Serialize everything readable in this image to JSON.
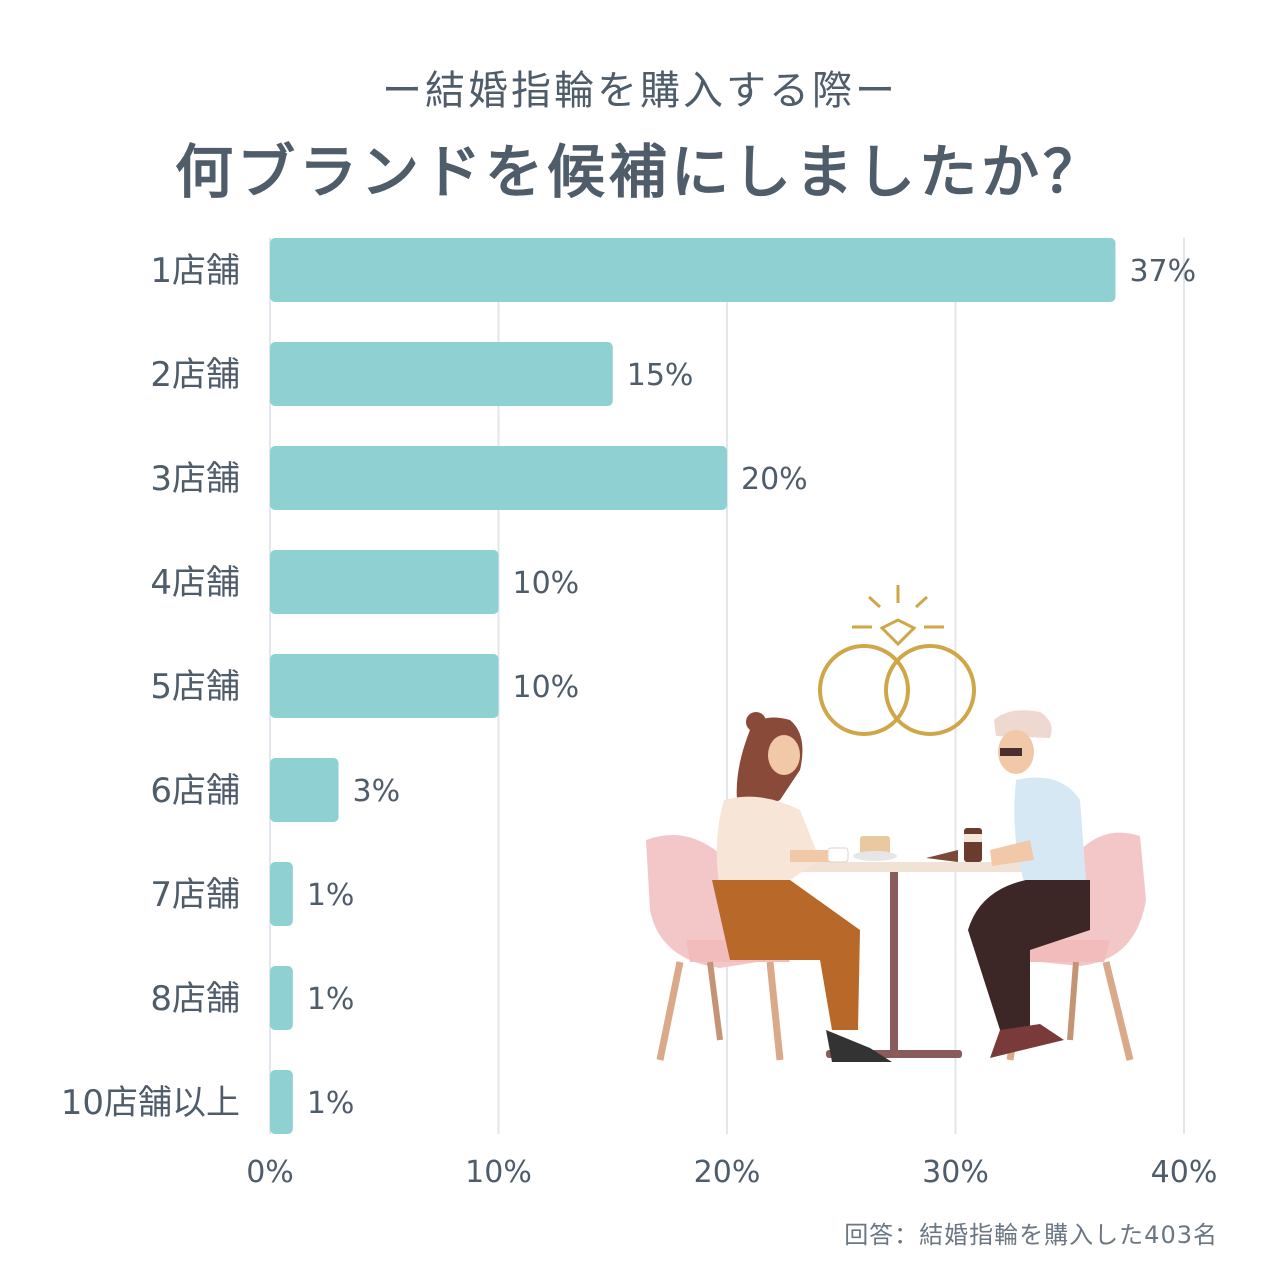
{
  "header": {
    "subtitle": "ー結婚指輪を購入する際ー",
    "title": "何ブランドを候補にしましたか？"
  },
  "chart_data": {
    "type": "bar",
    "orientation": "horizontal",
    "categories": [
      "1店舗",
      "2店舗",
      "3店舗",
      "4店舗",
      "5店舗",
      "6店舗",
      "7店舗",
      "8店舗",
      "10店舗以上"
    ],
    "values": [
      37,
      15,
      20,
      10,
      10,
      3,
      1,
      1,
      1
    ],
    "value_labels": [
      "37%",
      "15%",
      "20%",
      "10%",
      "10%",
      "3%",
      "1%",
      "1%",
      "1%"
    ],
    "xlim": [
      0,
      40
    ],
    "xticks": [
      0,
      10,
      20,
      30,
      40
    ],
    "xtick_labels": [
      "0%",
      "10%",
      "20%",
      "30%",
      "40%"
    ],
    "grid": "vertical",
    "bar_color": "#8fd0d3"
  },
  "footnote": "回答：結婚指輪を購入した403名",
  "colors": {
    "text": "#4f5d6b",
    "grid": "#e3e6ea",
    "bar": "#8fd0d3"
  }
}
